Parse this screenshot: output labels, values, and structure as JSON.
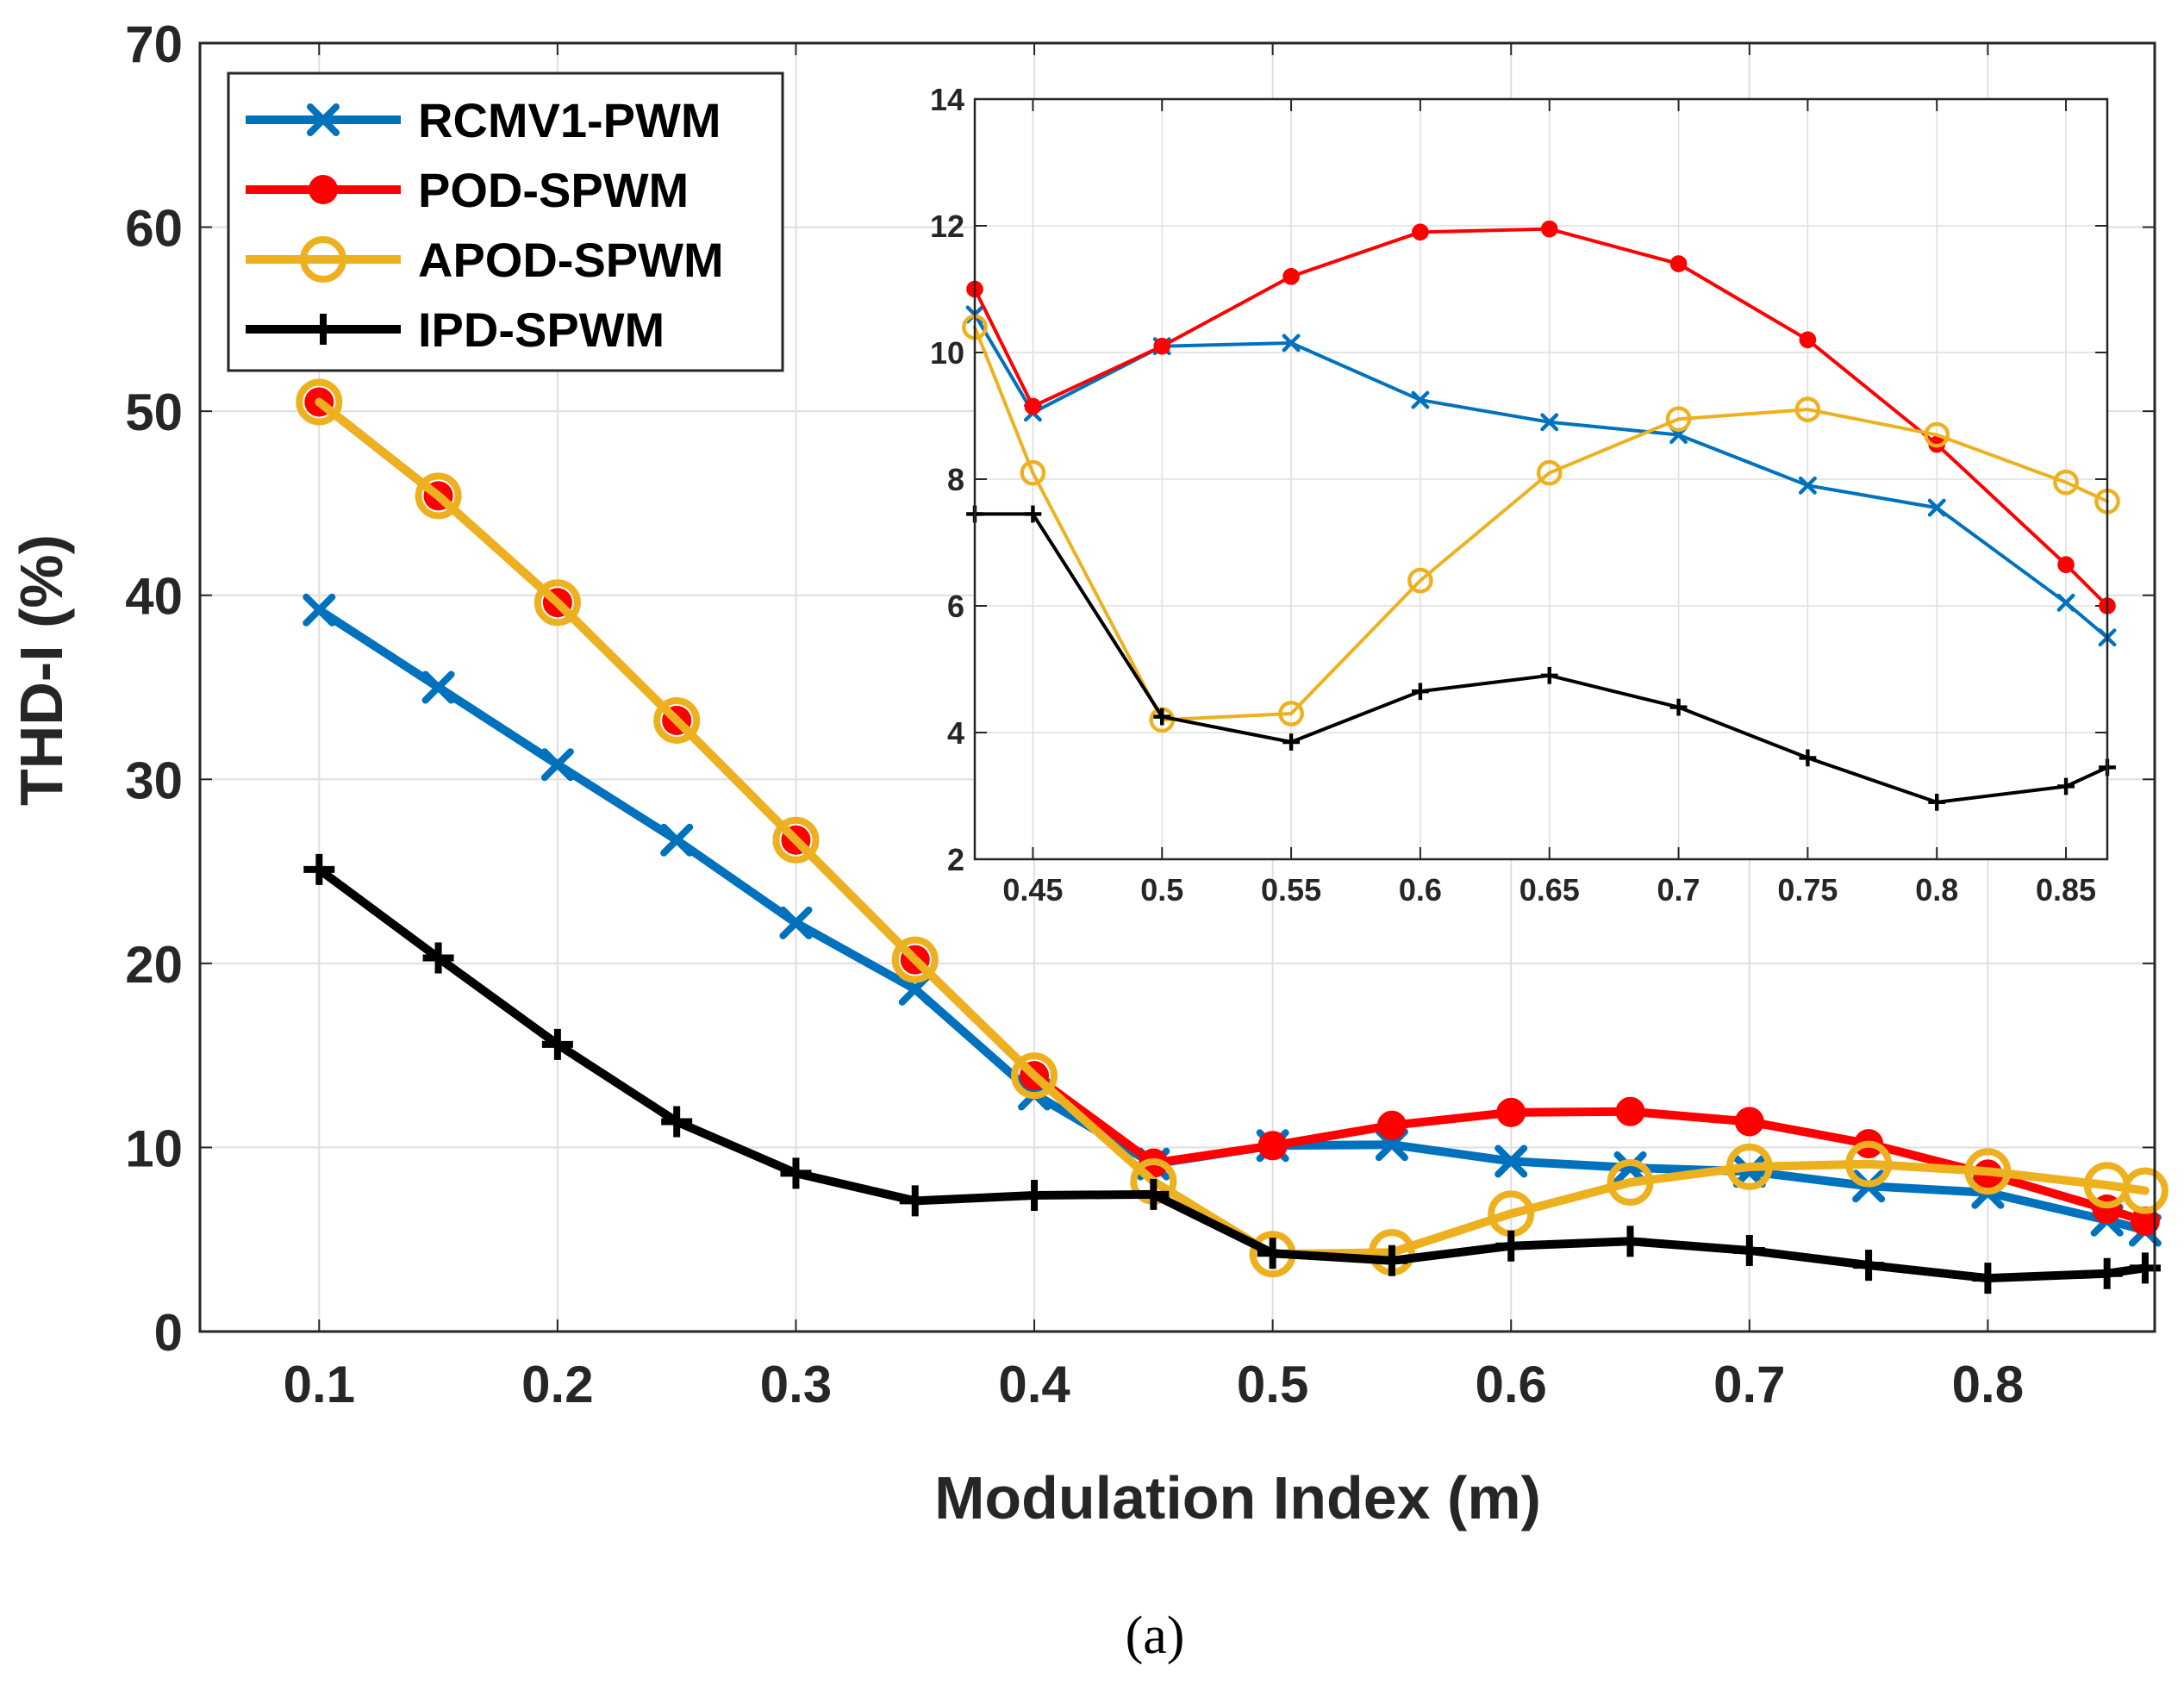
{
  "caption": "(a)",
  "chart_data": [
    {
      "id": "main",
      "type": "line",
      "title": "",
      "xlabel": "Modulation Index (m)",
      "ylabel": "THD-I (%)",
      "xlim": [
        0.05,
        0.87
      ],
      "ylim": [
        0,
        70
      ],
      "xticks": [
        0.1,
        0.2,
        0.3,
        0.4,
        0.5,
        0.6,
        0.7,
        0.8
      ],
      "xtick_labels": [
        "0.1",
        "0.2",
        "0.3",
        "0.4",
        "0.5",
        "0.6",
        "0.7",
        "0.8"
      ],
      "yticks": [
        0,
        10,
        20,
        30,
        40,
        50,
        60,
        70
      ],
      "ytick_labels": [
        "0",
        "10",
        "20",
        "30",
        "40",
        "50",
        "60",
        "70"
      ],
      "grid": true,
      "legend": {
        "position": "top-left",
        "entries": [
          "RCMV1-PWM",
          "POD-SPWM",
          "APOD-SPWM",
          "IPD-SPWM"
        ]
      },
      "x": [
        0.1,
        0.15,
        0.2,
        0.25,
        0.3,
        0.35,
        0.4,
        0.45,
        0.5,
        0.55,
        0.6,
        0.65,
        0.7,
        0.75,
        0.8,
        0.85,
        0.866
      ],
      "series": [
        {
          "name": "RCMV1-PWM",
          "color": "#0072BD",
          "marker": "x",
          "values": [
            39.2,
            35.0,
            30.8,
            26.7,
            22.2,
            18.6,
            12.9,
            9.1,
            10.1,
            10.15,
            9.25,
            8.9,
            8.7,
            7.9,
            7.55,
            6.05,
            5.5
          ]
        },
        {
          "name": "POD-SPWM",
          "color": "#FF0000",
          "marker": "filled-circle",
          "values": [
            50.5,
            45.4,
            39.6,
            33.2,
            26.7,
            20.2,
            13.9,
            9.15,
            10.1,
            11.2,
            11.9,
            11.95,
            11.4,
            10.2,
            8.55,
            6.65,
            6.0
          ]
        },
        {
          "name": "APOD-SPWM",
          "color": "#EDB120",
          "marker": "open-circle",
          "values": [
            50.5,
            45.4,
            39.6,
            33.2,
            26.7,
            20.2,
            13.9,
            8.15,
            4.2,
            4.3,
            6.4,
            8.1,
            8.95,
            9.1,
            8.7,
            7.95,
            7.65
          ]
        },
        {
          "name": "IPD-SPWM",
          "color": "#000000",
          "marker": "plus",
          "values": [
            25.1,
            20.3,
            15.6,
            11.4,
            8.6,
            7.1,
            7.4,
            7.45,
            4.25,
            3.85,
            4.65,
            4.9,
            4.4,
            3.6,
            2.9,
            3.15,
            3.45
          ]
        }
      ]
    },
    {
      "id": "inset",
      "type": "line",
      "title": "",
      "xlabel": "",
      "ylabel": "",
      "xlim": [
        0.4275,
        0.866
      ],
      "ylim": [
        2,
        14
      ],
      "xticks": [
        0.45,
        0.5,
        0.55,
        0.6,
        0.65,
        0.7,
        0.75,
        0.8,
        0.85
      ],
      "xtick_labels": [
        "0.45",
        "0.5",
        "0.55",
        "0.6",
        "0.65",
        "0.7",
        "0.75",
        "0.8",
        "0.85"
      ],
      "yticks": [
        2,
        4,
        6,
        8,
        10,
        12,
        14
      ],
      "ytick_labels": [
        "2",
        "4",
        "6",
        "8",
        "10",
        "12",
        "14"
      ],
      "grid": true,
      "x": [
        0.4275,
        0.45,
        0.5,
        0.55,
        0.6,
        0.65,
        0.7,
        0.75,
        0.8,
        0.85,
        0.866
      ],
      "series": [
        {
          "name": "RCMV1-PWM",
          "color": "#0072BD",
          "marker": "x",
          "values": [
            10.6,
            9.05,
            10.1,
            10.15,
            9.25,
            8.9,
            8.7,
            7.9,
            7.55,
            6.05,
            5.5
          ]
        },
        {
          "name": "POD-SPWM",
          "color": "#FF0000",
          "marker": "filled-circle",
          "values": [
            11.0,
            9.15,
            10.1,
            11.2,
            11.9,
            11.95,
            11.4,
            10.2,
            8.55,
            6.65,
            6.0
          ]
        },
        {
          "name": "APOD-SPWM",
          "color": "#EDB120",
          "marker": "open-circle",
          "values": [
            10.4,
            8.1,
            4.2,
            4.3,
            6.4,
            8.1,
            8.95,
            9.1,
            8.7,
            7.95,
            7.65
          ]
        },
        {
          "name": "IPD-SPWM",
          "color": "#000000",
          "marker": "plus",
          "values": [
            7.45,
            7.45,
            4.25,
            3.85,
            4.65,
            4.9,
            4.4,
            3.6,
            2.9,
            3.15,
            3.45
          ]
        }
      ]
    }
  ]
}
